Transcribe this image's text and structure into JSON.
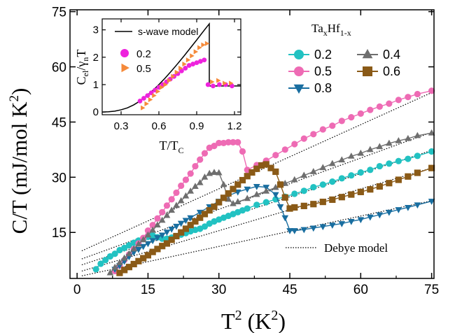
{
  "chart_data": [
    {
      "type": "line",
      "xlabel": "T",
      "xlabel_sup": "2",
      "xlabel_unit": " (K",
      "xlabel_unit_sup": "2",
      "xlabel_close": ")",
      "ylabel": "C/T (mJ/mol K",
      "ylabel_sup": "2",
      "ylabel_close": ")",
      "xlim": [
        -1.5,
        75.5
      ],
      "ylim": [
        2.5,
        75.5
      ],
      "xticks": [
        "0",
        "15",
        "30",
        "45",
        "60",
        "75"
      ],
      "yticks": [
        "15",
        "30",
        "45",
        "60",
        "75"
      ],
      "legend_title": "Ta",
      "legend_title_sub": "x",
      "legend_title_mid": "Hf",
      "legend_title_sub2": "1-x",
      "series": [
        {
          "name": "0.2",
          "color": "#22c2c2",
          "marker": "circle",
          "x": [
            4,
            5,
            6,
            7,
            8,
            9,
            10,
            11,
            12,
            13,
            14,
            15,
            16,
            17,
            18,
            19,
            20,
            21,
            22,
            23,
            24,
            25,
            26,
            27,
            28,
            29,
            30,
            31,
            32,
            33,
            34,
            35,
            36,
            38,
            40,
            42,
            44,
            46,
            48,
            50,
            52,
            54,
            56,
            58,
            60,
            62,
            64,
            66,
            68,
            70,
            72,
            75
          ],
          "y": [
            5,
            6.5,
            7.5,
            8.5,
            9.2,
            10.2,
            10.8,
            11.5,
            12.2,
            12.8,
            13.2,
            13.8,
            14.2,
            13.7,
            13.3,
            13.3,
            13.6,
            14,
            14.4,
            14.8,
            15.3,
            15.7,
            16,
            16.6,
            17.4,
            18,
            18.5,
            19,
            19.5,
            20,
            20.5,
            21,
            21.5,
            22.5,
            23.2,
            24,
            24.7,
            25.5,
            26.3,
            27.3,
            28,
            28.8,
            29.7,
            30.5,
            31.3,
            32,
            33,
            33.7,
            34.4,
            35,
            35.8,
            37
          ]
        },
        {
          "name": "0.5",
          "color": "#ee6bb4",
          "marker": "circle",
          "x": [
            8,
            9,
            10,
            11,
            12,
            13,
            14,
            15,
            16,
            17,
            18,
            19,
            20,
            21,
            22,
            23,
            24,
            25,
            26,
            27,
            28,
            29,
            30,
            31,
            32,
            33,
            34,
            35,
            36,
            38,
            40,
            42,
            44,
            46,
            48,
            50,
            52,
            54,
            56,
            58,
            60,
            62,
            64,
            66,
            68,
            70,
            72,
            75
          ],
          "y": [
            4.5,
            6,
            7.5,
            9,
            10.5,
            12,
            13.5,
            15.5,
            17,
            18.8,
            20.5,
            22.3,
            24,
            25.8,
            27.7,
            29.3,
            31,
            33,
            34.8,
            36.5,
            38,
            38.5,
            39.3,
            39.3,
            39.5,
            39.5,
            39.5,
            37,
            32,
            33.3,
            34.5,
            36,
            37.5,
            39,
            40.5,
            41.7,
            43,
            44,
            45.3,
            46.3,
            47.3,
            48.3,
            49.2,
            50,
            51,
            51.8,
            52.6,
            53.5
          ]
        },
        {
          "name": "0.8",
          "color": "#196ea0",
          "marker": "triangle-down",
          "x": [
            8,
            9,
            10,
            11,
            12,
            13,
            14,
            15,
            16,
            17,
            18,
            19,
            20,
            21,
            22,
            23,
            24,
            26,
            28,
            30,
            32,
            34,
            36,
            38,
            40,
            42,
            43,
            44,
            45,
            46,
            48,
            50,
            52,
            54,
            56,
            58,
            60,
            62,
            64,
            66,
            68,
            70,
            72,
            75
          ],
          "y": [
            5,
            6,
            7.2,
            8.4,
            9.6,
            10.4,
            11.2,
            12,
            12.8,
            13.6,
            14.3,
            15.1,
            15.9,
            16.7,
            17.5,
            18.3,
            19,
            20.5,
            22,
            23.5,
            25,
            26,
            26.8,
            27.5,
            27.3,
            25.3,
            22,
            19,
            15.5,
            15.5,
            15.8,
            16.2,
            16.6,
            17,
            17.4,
            18,
            18.5,
            19.2,
            19.8,
            20.5,
            21.2,
            21.8,
            22.5,
            23.5
          ]
        },
        {
          "name": "0.4",
          "color": "#6e6e6e",
          "marker": "triangle-up",
          "x": [
            7,
            8,
            9,
            10,
            11,
            12,
            13,
            14,
            15,
            16,
            17,
            18,
            19,
            20,
            21,
            22,
            23,
            24,
            25,
            26,
            27,
            28,
            29,
            30,
            31,
            32,
            33,
            34,
            36,
            38,
            40,
            42,
            44,
            46,
            48,
            50,
            52,
            54,
            56,
            58,
            60,
            62,
            64,
            66,
            68,
            70,
            72,
            75
          ],
          "y": [
            4,
            5.5,
            6.8,
            8,
            9.2,
            10.5,
            11.8,
            13,
            14.3,
            15.6,
            17,
            18.3,
            19.6,
            21,
            22.3,
            23.6,
            24.9,
            26.2,
            27.5,
            28.5,
            30,
            31,
            31.3,
            31.2,
            28,
            24,
            22.8,
            23.3,
            24.2,
            25.3,
            26.2,
            27.2,
            28.3,
            29.3,
            30.5,
            31.5,
            32.6,
            33.7,
            34.7,
            35.7,
            36.5,
            37.5,
            38.3,
            39.2,
            39.9,
            40.5,
            41.3,
            42
          ]
        },
        {
          "name": "0.6",
          "color": "#8a5a17",
          "marker": "square",
          "x": [
            9,
            10,
            11,
            12,
            13,
            14,
            15,
            16,
            17,
            18,
            19,
            20,
            21,
            22,
            23,
            24,
            25,
            26,
            27,
            28,
            29,
            30,
            31,
            32,
            33,
            34,
            35,
            36,
            37,
            38,
            39,
            40,
            41,
            42,
            43,
            44,
            45,
            46,
            48,
            50,
            52,
            54,
            56,
            58,
            60,
            62,
            64,
            66,
            68,
            70,
            72,
            75
          ],
          "y": [
            4,
            4.8,
            5.6,
            6.4,
            7.2,
            8,
            8.8,
            9.7,
            10.5,
            11.3,
            12,
            13,
            14,
            15,
            16,
            17,
            18,
            19,
            20,
            21,
            22,
            23.2,
            24.4,
            25.6,
            26.8,
            28,
            29.2,
            30.3,
            31.3,
            32.3,
            33.2,
            33.5,
            32.5,
            31.5,
            28,
            24.5,
            21.5,
            21.8,
            22.2,
            22.7,
            23.3,
            23.9,
            24.6,
            25.3,
            26,
            26.7,
            27.5,
            28.4,
            29.3,
            30.2,
            31.2,
            32.5
          ]
        }
      ],
      "debye_lines": [
        {
          "x": [
            1,
            75
          ],
          "y": [
            10,
            53
          ]
        },
        {
          "x": [
            1,
            75
          ],
          "y": [
            7.8,
            42.2
          ]
        },
        {
          "x": [
            1,
            75
          ],
          "y": [
            6.2,
            37.3
          ]
        },
        {
          "x": [
            1,
            75
          ],
          "y": [
            4.5,
            32.5
          ]
        },
        {
          "x": [
            1,
            75
          ],
          "y": [
            3.2,
            23.6
          ]
        }
      ],
      "annotation": "Debye model"
    },
    {
      "type": "line",
      "xlabel": "T/T",
      "xlabel_sub": "C",
      "ylabel_parts": [
        "C",
        "el",
        "/γ",
        "n",
        "T"
      ],
      "xlim": [
        0.15,
        1.25
      ],
      "ylim": [
        -0.1,
        3.4
      ],
      "xticks": [
        "0.3",
        "0.6",
        "0.9",
        "1.2"
      ],
      "yticks": [
        "0",
        "1",
        "2",
        "3"
      ],
      "model": {
        "name": "s-wave model",
        "color": "#000000",
        "x": [
          0.15,
          0.2,
          0.25,
          0.3,
          0.35,
          0.4,
          0.45,
          0.5,
          0.55,
          0.6,
          0.65,
          0.7,
          0.75,
          0.8,
          0.85,
          0.9,
          0.95,
          1.0,
          1.0,
          1.25
        ],
        "y": [
          0.0,
          0.01,
          0.03,
          0.08,
          0.15,
          0.26,
          0.4,
          0.58,
          0.78,
          1.0,
          1.24,
          1.5,
          1.77,
          2.05,
          2.34,
          2.63,
          2.93,
          3.22,
          0.95,
          0.95
        ]
      },
      "series": [
        {
          "name": "0.2",
          "color": "#ee22dd",
          "marker": "circle",
          "x": [
            0.45,
            0.48,
            0.51,
            0.54,
            0.57,
            0.6,
            0.63,
            0.66,
            0.69,
            0.72,
            0.75,
            0.78,
            0.81,
            0.84,
            0.87,
            0.9,
            0.93,
            0.96,
            0.99,
            1.03,
            1.08,
            1.13,
            1.18
          ],
          "y": [
            0.4,
            0.5,
            0.6,
            0.7,
            0.8,
            0.9,
            1.0,
            1.1,
            1.2,
            1.3,
            1.4,
            1.5,
            1.6,
            1.7,
            1.75,
            1.8,
            1.85,
            1.9,
            1.0,
            0.95,
            1.0,
            1.0,
            0.95
          ]
        },
        {
          "name": "0.5",
          "color": "#f58a3a",
          "marker": "triangle-right",
          "x": [
            0.47,
            0.5,
            0.53,
            0.56,
            0.59,
            0.62,
            0.65,
            0.68,
            0.71,
            0.74,
            0.77,
            0.8,
            0.83,
            0.86,
            0.89,
            0.92,
            0.95,
            0.98,
            1.02,
            1.07,
            1.12,
            1.17
          ],
          "y": [
            0.15,
            0.3,
            0.45,
            0.6,
            0.75,
            0.9,
            1.0,
            1.15,
            1.3,
            1.45,
            1.6,
            1.75,
            1.9,
            2.05,
            2.2,
            2.35,
            2.45,
            2.5,
            1.1,
            1.15,
            1.05,
            1.05
          ]
        }
      ]
    }
  ]
}
